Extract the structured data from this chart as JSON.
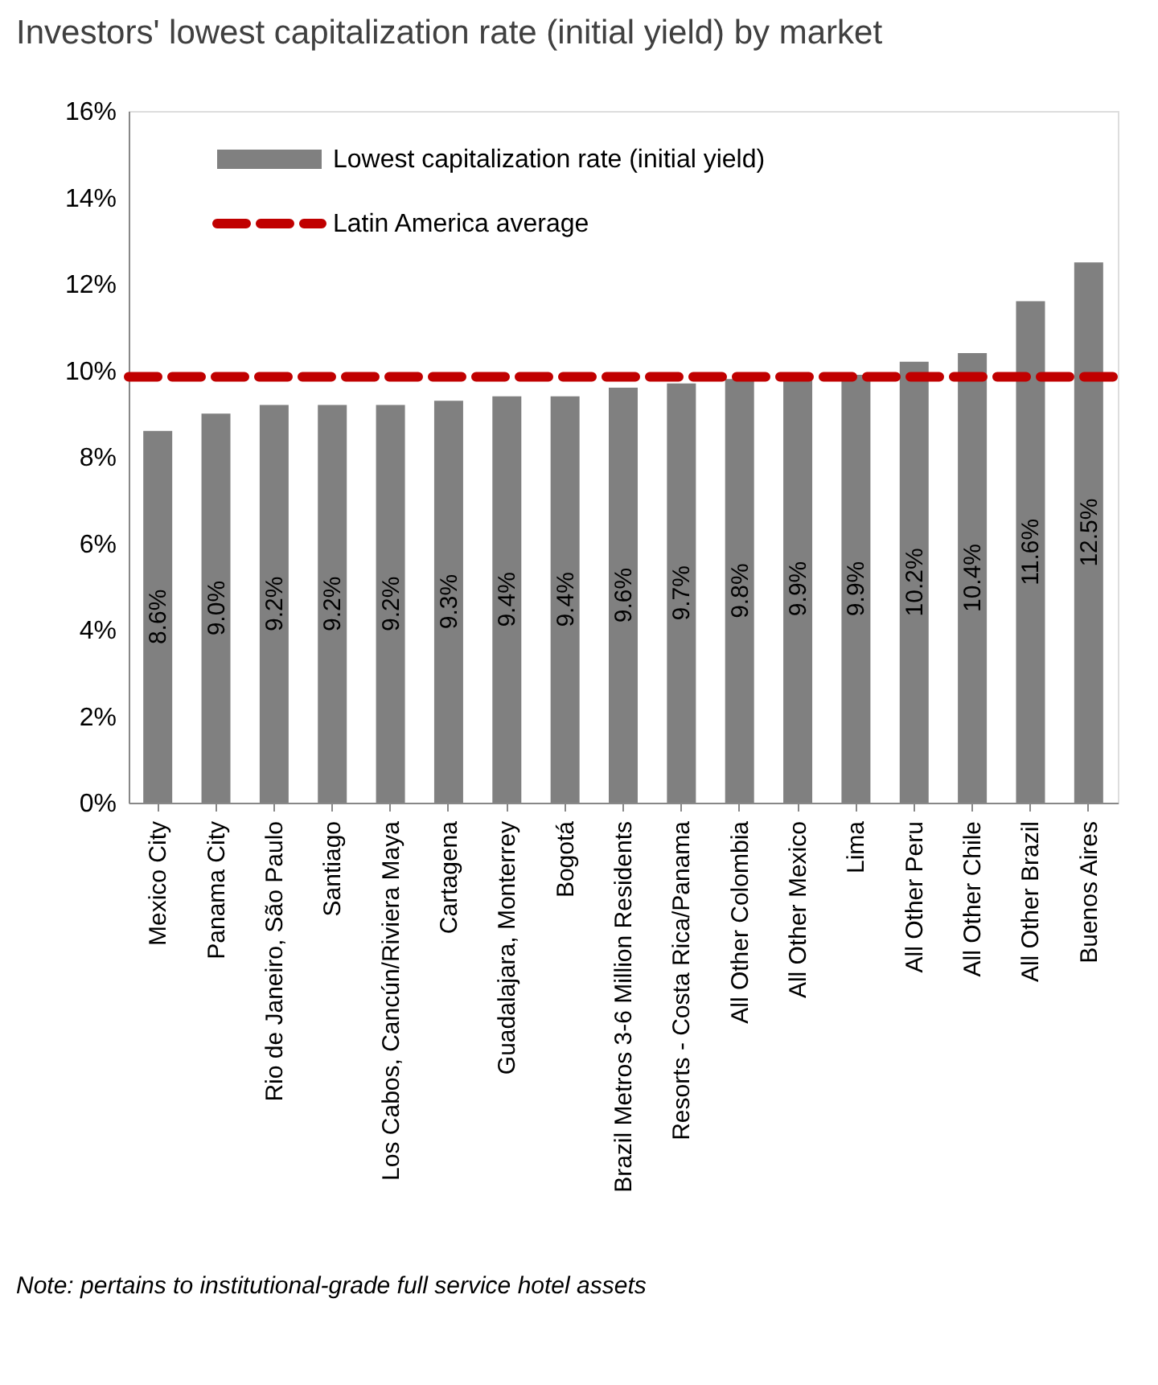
{
  "chart_data": {
    "type": "bar",
    "title": "Investors' lowest capitalization rate (initial yield) by market",
    "categories": [
      "Mexico City",
      "Panama City",
      "Rio de Janeiro, São Paulo",
      "Santiago",
      "Los Cabos, Cancún/Riviera Maya",
      "Cartagena",
      "Guadalajara, Monterrey",
      "Bogotá",
      "Brazil Metros 3-6 Million Residents",
      "Resorts - Costa Rica/Panama",
      "All Other Colombia",
      "All Other Mexico",
      "Lima",
      "All Other Peru",
      "All Other Chile",
      "All Other Brazil",
      "Buenos Aires"
    ],
    "series": [
      {
        "name": "Lowest capitalization rate (initial yield)",
        "color": "#808080",
        "values": [
          8.6,
          9.0,
          9.2,
          9.2,
          9.2,
          9.3,
          9.4,
          9.4,
          9.6,
          9.7,
          9.8,
          9.9,
          9.9,
          10.2,
          10.4,
          11.6,
          12.5
        ],
        "value_labels": [
          "8.6%",
          "9.0%",
          "9.2%",
          "9.2%",
          "9.2%",
          "9.3%",
          "9.4%",
          "9.4%",
          "9.6%",
          "9.7%",
          "9.8%",
          "9.9%",
          "9.9%",
          "10.2%",
          "10.4%",
          "11.6%",
          "12.5%"
        ]
      }
    ],
    "ref_lines": [
      {
        "axis": "y",
        "value": 9.85,
        "label": "Latin America average",
        "color": "#c00000",
        "line_style": "dashed"
      }
    ],
    "ylim": [
      0,
      16
    ],
    "yticks": [
      {
        "value": 0,
        "label": "0%"
      },
      {
        "value": 2,
        "label": "2%"
      },
      {
        "value": 4,
        "label": "4%"
      },
      {
        "value": 6,
        "label": "6%"
      },
      {
        "value": 8,
        "label": "8%"
      },
      {
        "value": 10,
        "label": "10%"
      },
      {
        "value": 12,
        "label": "12%"
      },
      {
        "value": 14,
        "label": "14%"
      },
      {
        "value": 16,
        "label": "16%"
      }
    ],
    "grid": false,
    "legend": "top left",
    "annotations": [
      "Note: pertains to institutional-grade full service hotel assets"
    ]
  }
}
